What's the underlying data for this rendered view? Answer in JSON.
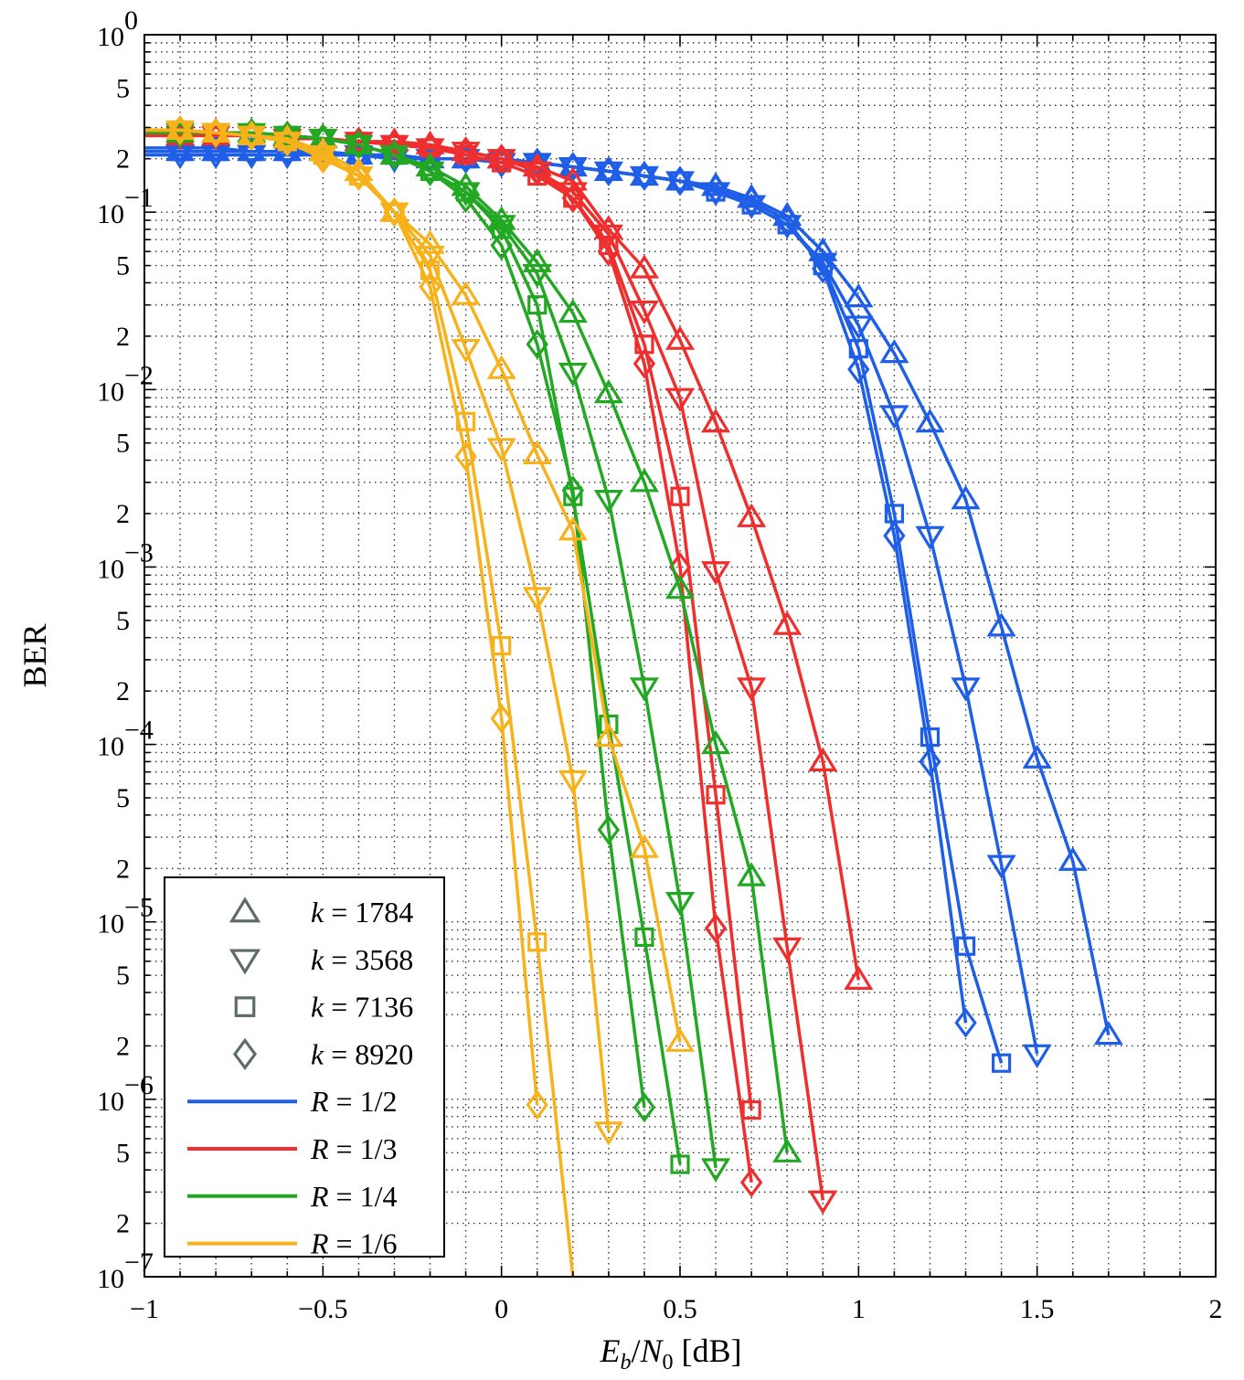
{
  "chart_data": {
    "type": "line",
    "title": "",
    "xlabel": "E_b/N_0 [dB]",
    "ylabel": "BER",
    "xlim": [
      -1,
      2
    ],
    "ylim": [
      1e-07,
      1
    ],
    "yscale": "log",
    "grid": true,
    "legend_position": "bottom-left",
    "x_ticks": [
      "−1",
      "−0.5",
      "0",
      "0.5",
      "1",
      "1.5",
      "2"
    ],
    "y_ticks": [
      "10^0",
      "10^-1",
      "10^-2",
      "10^-3",
      "10^-4",
      "10^-5",
      "10^-6",
      "10^-7"
    ],
    "y_minor_labels": [
      "5",
      "2"
    ],
    "markers": [
      {
        "k": "1784",
        "label": "k = 1784",
        "marker": "triangle-up"
      },
      {
        "k": "3568",
        "label": "k = 3568",
        "marker": "triangle-down"
      },
      {
        "k": "7136",
        "label": "k = 7136",
        "marker": "square"
      },
      {
        "k": "8920",
        "label": "k = 8920",
        "marker": "diamond"
      }
    ],
    "rates": [
      {
        "label": "R = 1/2",
        "color": "#1f5fe8"
      },
      {
        "label": "R = 1/3",
        "color": "#ef2e2e"
      },
      {
        "label": "R = 1/4",
        "color": "#22a822"
      },
      {
        "label": "R = 1/6",
        "color": "#f7b11b"
      }
    ],
    "series": [
      {
        "rate": "R = 1/2",
        "k": "1784",
        "color": "#1f5fe8",
        "marker": "triangle-up",
        "x": [
          -0.9,
          -0.8,
          -0.7,
          -0.6,
          -0.5,
          -0.4,
          -0.3,
          -0.2,
          -0.1,
          0,
          0.1,
          0.2,
          0.3,
          0.4,
          0.5,
          0.6,
          0.7,
          0.8,
          0.9,
          1.0,
          1.1,
          1.2,
          1.3,
          1.4,
          1.5,
          1.6,
          1.7
        ],
        "y": [
          0.22,
          0.22,
          0.22,
          0.22,
          0.22,
          0.21,
          0.21,
          0.2,
          0.2,
          0.2,
          0.19,
          0.18,
          0.17,
          0.16,
          0.15,
          0.14,
          0.12,
          0.095,
          0.06,
          0.033,
          0.016,
          0.0065,
          0.0024,
          0.00046,
          8.3e-05,
          2.2e-05,
          2.3e-06
        ]
      },
      {
        "rate": "R = 1/2",
        "k": "3568",
        "color": "#1f5fe8",
        "marker": "triangle-down",
        "x": [
          -0.9,
          -0.8,
          -0.7,
          -0.6,
          -0.5,
          -0.4,
          -0.3,
          -0.2,
          -0.1,
          0,
          0.1,
          0.2,
          0.3,
          0.4,
          0.5,
          0.6,
          0.7,
          0.8,
          0.9,
          1.0,
          1.1,
          1.2,
          1.3,
          1.4,
          1.5
        ],
        "y": [
          0.21,
          0.21,
          0.21,
          0.21,
          0.21,
          0.21,
          0.2,
          0.2,
          0.2,
          0.19,
          0.19,
          0.18,
          0.17,
          0.16,
          0.15,
          0.13,
          0.11,
          0.085,
          0.052,
          0.023,
          0.0072,
          0.0015,
          0.00021,
          2.1e-05,
          1.8e-06
        ]
      },
      {
        "rate": "R = 1/2",
        "k": "7136",
        "color": "#1f5fe8",
        "marker": "square",
        "x": [
          -0.9,
          -0.8,
          -0.7,
          -0.6,
          -0.5,
          -0.4,
          -0.3,
          -0.2,
          -0.1,
          0,
          0.1,
          0.2,
          0.3,
          0.4,
          0.5,
          0.6,
          0.7,
          0.8,
          0.9,
          1.0,
          1.1,
          1.2,
          1.3,
          1.4
        ],
        "y": [
          0.22,
          0.22,
          0.22,
          0.22,
          0.21,
          0.21,
          0.21,
          0.2,
          0.2,
          0.2,
          0.19,
          0.18,
          0.17,
          0.16,
          0.15,
          0.13,
          0.11,
          0.085,
          0.05,
          0.017,
          0.002,
          0.00011,
          7.3e-06,
          1.6e-06
        ]
      },
      {
        "rate": "R = 1/2",
        "k": "8920",
        "color": "#1f5fe8",
        "marker": "diamond",
        "x": [
          -0.9,
          -0.8,
          -0.7,
          -0.6,
          -0.5,
          -0.4,
          -0.3,
          -0.2,
          -0.1,
          0,
          0.1,
          0.2,
          0.3,
          0.4,
          0.5,
          0.6,
          0.7,
          0.8,
          0.9,
          1.0,
          1.1,
          1.2,
          1.3
        ],
        "y": [
          0.23,
          0.23,
          0.22,
          0.22,
          0.22,
          0.21,
          0.21,
          0.2,
          0.2,
          0.19,
          0.19,
          0.18,
          0.17,
          0.16,
          0.15,
          0.135,
          0.115,
          0.09,
          0.048,
          0.013,
          0.0015,
          8e-05,
          2.7e-06
        ]
      },
      {
        "rate": "R = 1/3",
        "k": "1784",
        "color": "#ef2e2e",
        "marker": "triangle-up",
        "x": [
          -0.9,
          -0.8,
          -0.7,
          -0.6,
          -0.5,
          -0.4,
          -0.3,
          -0.2,
          -0.1,
          0,
          0.1,
          0.2,
          0.3,
          0.4,
          0.5,
          0.6,
          0.7,
          0.8,
          0.9,
          1.0
        ],
        "y": [
          0.27,
          0.27,
          0.27,
          0.26,
          0.26,
          0.25,
          0.25,
          0.24,
          0.22,
          0.2,
          0.18,
          0.15,
          0.08,
          0.048,
          0.019,
          0.0065,
          0.0019,
          0.00047,
          8e-05,
          4.7e-06
        ]
      },
      {
        "rate": "R = 1/3",
        "k": "3568",
        "color": "#ef2e2e",
        "marker": "triangle-down",
        "x": [
          -0.9,
          -0.8,
          -0.7,
          -0.6,
          -0.5,
          -0.4,
          -0.3,
          -0.2,
          -0.1,
          0,
          0.1,
          0.2,
          0.3,
          0.4,
          0.5,
          0.6,
          0.7,
          0.8,
          0.9
        ],
        "y": [
          0.27,
          0.27,
          0.27,
          0.26,
          0.26,
          0.25,
          0.24,
          0.23,
          0.22,
          0.2,
          0.17,
          0.13,
          0.075,
          0.028,
          0.009,
          0.00095,
          0.00021,
          7.2e-06,
          2.7e-07
        ]
      },
      {
        "rate": "R = 1/3",
        "k": "7136",
        "color": "#ef2e2e",
        "marker": "square",
        "x": [
          -0.9,
          -0.8,
          -0.7,
          -0.6,
          -0.5,
          -0.4,
          -0.3,
          -0.2,
          -0.1,
          0,
          0.1,
          0.2,
          0.3,
          0.4,
          0.5,
          0.6,
          0.7
        ],
        "y": [
          0.28,
          0.28,
          0.27,
          0.27,
          0.26,
          0.25,
          0.24,
          0.23,
          0.21,
          0.19,
          0.16,
          0.12,
          0.065,
          0.018,
          0.0025,
          5.2e-05,
          8.7e-07
        ]
      },
      {
        "rate": "R = 1/3",
        "k": "8920",
        "color": "#ef2e2e",
        "marker": "diamond",
        "x": [
          -0.9,
          -0.8,
          -0.7,
          -0.6,
          -0.5,
          -0.4,
          -0.3,
          -0.2,
          -0.1,
          0,
          0.1,
          0.2,
          0.3,
          0.4,
          0.5,
          0.6,
          0.7
        ],
        "y": [
          0.28,
          0.28,
          0.27,
          0.27,
          0.26,
          0.25,
          0.24,
          0.23,
          0.22,
          0.2,
          0.17,
          0.12,
          0.06,
          0.014,
          0.001,
          9.2e-06,
          3.4e-07
        ]
      },
      {
        "rate": "R = 1/4",
        "k": "1784",
        "color": "#22a822",
        "marker": "triangle-up",
        "x": [
          -0.9,
          -0.8,
          -0.7,
          -0.6,
          -0.5,
          -0.4,
          -0.3,
          -0.2,
          -0.1,
          0,
          0.1,
          0.2,
          0.3,
          0.4,
          0.5,
          0.6,
          0.7,
          0.8
        ],
        "y": [
          0.28,
          0.28,
          0.28,
          0.27,
          0.26,
          0.24,
          0.21,
          0.18,
          0.14,
          0.09,
          0.052,
          0.027,
          0.0095,
          0.003,
          0.00075,
          0.0001,
          1.8e-05,
          5e-07
        ]
      },
      {
        "rate": "R = 1/4",
        "k": "3568",
        "color": "#22a822",
        "marker": "triangle-down",
        "x": [
          -0.9,
          -0.8,
          -0.7,
          -0.6,
          -0.5,
          -0.4,
          -0.3,
          -0.2,
          -0.1,
          0,
          0.1,
          0.2,
          0.3,
          0.4,
          0.5,
          0.6
        ],
        "y": [
          0.28,
          0.28,
          0.28,
          0.27,
          0.26,
          0.24,
          0.21,
          0.17,
          0.13,
          0.085,
          0.045,
          0.0125,
          0.0024,
          0.00021,
          1.3e-05,
          4.1e-07
        ]
      },
      {
        "rate": "R = 1/4",
        "k": "7136",
        "color": "#22a822",
        "marker": "square",
        "x": [
          -0.9,
          -0.8,
          -0.7,
          -0.6,
          -0.5,
          -0.4,
          -0.3,
          -0.2,
          -0.1,
          0,
          0.1,
          0.2,
          0.3,
          0.4,
          0.5
        ],
        "y": [
          0.28,
          0.28,
          0.28,
          0.27,
          0.26,
          0.24,
          0.21,
          0.17,
          0.13,
          0.08,
          0.03,
          0.0025,
          0.00013,
          8.2e-06,
          4.3e-07
        ]
      },
      {
        "rate": "R = 1/4",
        "k": "8920",
        "color": "#22a822",
        "marker": "diamond",
        "x": [
          -0.9,
          -0.8,
          -0.7,
          -0.6,
          -0.5,
          -0.4,
          -0.3,
          -0.2,
          -0.1,
          0,
          0.1,
          0.2,
          0.3,
          0.4
        ],
        "y": [
          0.28,
          0.28,
          0.28,
          0.27,
          0.26,
          0.24,
          0.21,
          0.17,
          0.12,
          0.065,
          0.018,
          0.0027,
          3.3e-05,
          9e-07
        ]
      },
      {
        "rate": "R = 1/6",
        "k": "1784",
        "color": "#f7b11b",
        "marker": "triangle-up",
        "x": [
          -0.9,
          -0.8,
          -0.7,
          -0.6,
          -0.5,
          -0.4,
          -0.3,
          -0.2,
          -0.1,
          0,
          0.1,
          0.2,
          0.3,
          0.4,
          0.5
        ],
        "y": [
          0.29,
          0.28,
          0.27,
          0.26,
          0.22,
          0.17,
          0.1,
          0.066,
          0.034,
          0.013,
          0.0043,
          0.0016,
          0.00011,
          2.6e-05,
          2.1e-06
        ]
      },
      {
        "rate": "R = 1/6",
        "k": "3568",
        "color": "#f7b11b",
        "marker": "triangle-down",
        "x": [
          -0.9,
          -0.8,
          -0.7,
          -0.6,
          -0.5,
          -0.4,
          -0.3,
          -0.2,
          -0.1,
          0,
          0.1,
          0.2,
          0.3
        ],
        "y": [
          0.29,
          0.28,
          0.27,
          0.25,
          0.21,
          0.16,
          0.1,
          0.057,
          0.017,
          0.0047,
          0.00068,
          6.3e-05,
          6.6e-07
        ]
      },
      {
        "rate": "R = 1/6",
        "k": "7136",
        "color": "#f7b11b",
        "marker": "square",
        "x": [
          -0.9,
          -0.8,
          -0.7,
          -0.6,
          -0.5,
          -0.4,
          -0.3,
          -0.2,
          -0.1,
          0,
          0.1,
          0.2
        ],
        "y": [
          0.29,
          0.28,
          0.27,
          0.25,
          0.21,
          0.16,
          0.1,
          0.047,
          0.0066,
          0.00036,
          7.7e-06,
          1e-07
        ]
      },
      {
        "rate": "R = 1/6",
        "k": "8920",
        "color": "#f7b11b",
        "marker": "diamond",
        "x": [
          -0.9,
          -0.8,
          -0.7,
          -0.6,
          -0.5,
          -0.4,
          -0.3,
          -0.2,
          -0.1,
          0,
          0.1
        ],
        "y": [
          0.29,
          0.28,
          0.27,
          0.25,
          0.2,
          0.16,
          0.1,
          0.038,
          0.0042,
          0.00014,
          9.3e-07
        ]
      }
    ]
  }
}
